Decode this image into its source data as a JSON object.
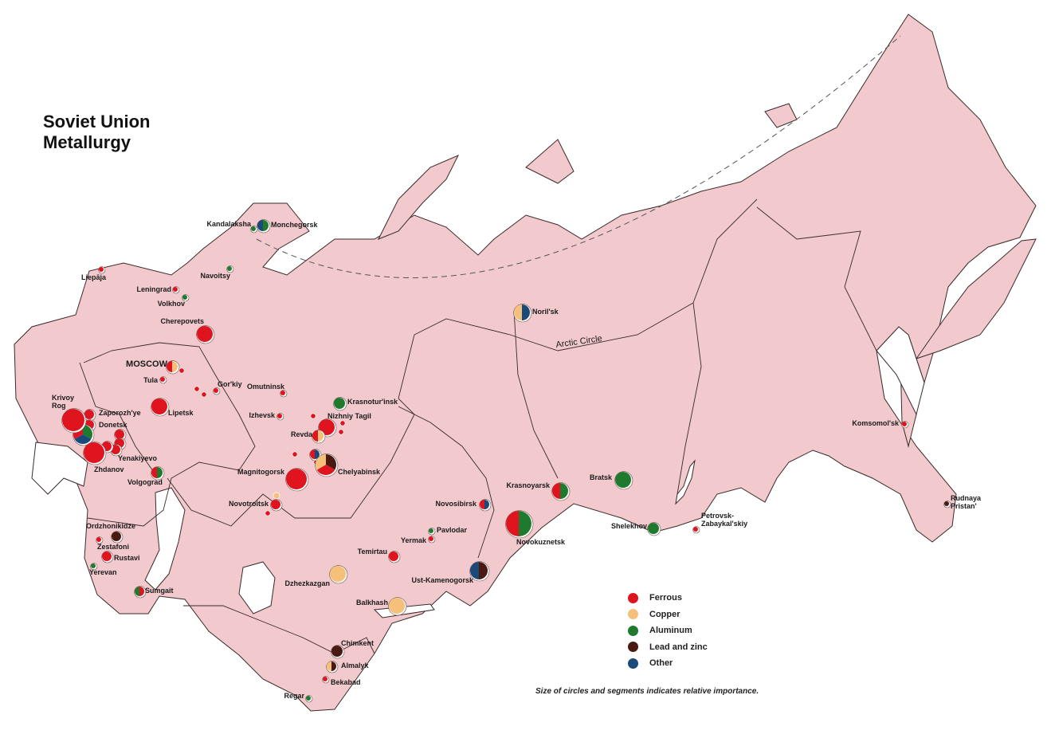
{
  "title": {
    "line1": "Soviet Union",
    "line2": "Metallurgy"
  },
  "arctic_circle_label": "Arctic Circle",
  "colors": {
    "land": "#f2c9cd",
    "border": "#3a2a2a",
    "water": "#ffffff",
    "ferrous": "#e0141e",
    "copper": "#f5c07a",
    "aluminum": "#1f7a2e",
    "lead_zinc": "#4a1a12",
    "other": "#1a4a7a"
  },
  "legend": {
    "items": [
      {
        "key": "ferrous",
        "label": "Ferrous"
      },
      {
        "key": "copper",
        "label": "Copper"
      },
      {
        "key": "aluminum",
        "label": "Aluminum"
      },
      {
        "key": "lead_zinc",
        "label": "Lead and zinc"
      },
      {
        "key": "other",
        "label": "Other"
      }
    ],
    "note": "Size of circles and segments indicates relative importance."
  },
  "cities": [
    {
      "name": "Monchegorsk",
      "metals": [
        "aluminum",
        "other"
      ]
    },
    {
      "name": "Kandalaksha",
      "metals": [
        "aluminum"
      ]
    },
    {
      "name": "Liepāja",
      "metals": [
        "ferrous"
      ]
    },
    {
      "name": "Leningrad",
      "metals": [
        "ferrous"
      ]
    },
    {
      "name": "Volkhov",
      "metals": [
        "aluminum"
      ]
    },
    {
      "name": "Navoitsy",
      "metals": [
        "aluminum"
      ]
    },
    {
      "name": "Cherepovets",
      "metals": [
        "ferrous"
      ]
    },
    {
      "name": "MOSCOW",
      "metals": [
        "copper",
        "ferrous"
      ]
    },
    {
      "name": "Tula",
      "metals": [
        "ferrous"
      ]
    },
    {
      "name": "Gor'kiy",
      "metals": [
        "ferrous"
      ]
    },
    {
      "name": "Omutninsk",
      "metals": [
        "ferrous"
      ]
    },
    {
      "name": "Lipetsk",
      "metals": [
        "ferrous"
      ]
    },
    {
      "name": "Izhevsk",
      "metals": [
        "ferrous"
      ]
    },
    {
      "name": "Krasnotur'insk",
      "metals": [
        "aluminum"
      ]
    },
    {
      "name": "Nizhniy Tagil",
      "metals": [
        "ferrous"
      ]
    },
    {
      "name": "Revda",
      "metals": [
        "copper",
        "ferrous"
      ]
    },
    {
      "name": "Krivoy\nRog",
      "metals": [
        "ferrous"
      ]
    },
    {
      "name": "Zaporozh'ye",
      "metals": [
        "ferrous"
      ]
    },
    {
      "name": "Donetsk",
      "metals": [
        "ferrous"
      ]
    },
    {
      "name": "Zhdanov",
      "metals": [
        "ferrous"
      ]
    },
    {
      "name": "Yenakiyevo",
      "metals": [
        "ferrous"
      ]
    },
    {
      "name": "Volgograd",
      "metals": [
        "aluminum",
        "ferrous"
      ]
    },
    {
      "name": "Chelyabinsk",
      "metals": [
        "lead_zinc",
        "ferrous",
        "copper"
      ]
    },
    {
      "name": "Magnitogorsk",
      "metals": [
        "ferrous"
      ]
    },
    {
      "name": "Novotroitsk",
      "metals": [
        "ferrous"
      ]
    },
    {
      "name": "Ordzhonikidze",
      "metals": [
        "lead_zinc"
      ]
    },
    {
      "name": "Zestafoni",
      "metals": [
        "ferrous"
      ]
    },
    {
      "name": "Rustavi",
      "metals": [
        "ferrous"
      ]
    },
    {
      "name": "Yerevan",
      "metals": [
        "aluminum"
      ]
    },
    {
      "name": "Sumgait",
      "metals": [
        "ferrous",
        "aluminum"
      ]
    },
    {
      "name": "Noril'sk",
      "metals": [
        "other",
        "copper"
      ]
    },
    {
      "name": "Krasnoyarsk",
      "metals": [
        "aluminum",
        "ferrous"
      ]
    },
    {
      "name": "Bratsk",
      "metals": [
        "aluminum"
      ]
    },
    {
      "name": "Shelekhov",
      "metals": [
        "aluminum"
      ]
    },
    {
      "name": "Novosibirsk",
      "metals": [
        "other",
        "ferrous"
      ]
    },
    {
      "name": "Novokuznetsk",
      "metals": [
        "aluminum",
        "ferrous"
      ]
    },
    {
      "name": "Pavlodar",
      "metals": [
        "aluminum"
      ]
    },
    {
      "name": "Yermak",
      "metals": [
        "ferrous"
      ]
    },
    {
      "name": "Temirtau",
      "metals": [
        "ferrous"
      ]
    },
    {
      "name": "Ust-Kamenogorsk",
      "metals": [
        "lead_zinc",
        "other"
      ]
    },
    {
      "name": "Dzhezkazgan",
      "metals": [
        "copper"
      ]
    },
    {
      "name": "Balkhash",
      "metals": [
        "copper"
      ]
    },
    {
      "name": "Chimkent",
      "metals": [
        "lead_zinc"
      ]
    },
    {
      "name": "Almalyk",
      "metals": [
        "lead_zinc",
        "copper"
      ]
    },
    {
      "name": "Bekabad",
      "metals": [
        "ferrous"
      ]
    },
    {
      "name": "Regar",
      "metals": [
        "aluminum"
      ]
    },
    {
      "name": "Petrovsk-\nZabaykal'skiy",
      "metals": [
        "ferrous"
      ]
    },
    {
      "name": "Komsomol'sk",
      "metals": [
        "ferrous"
      ]
    },
    {
      "name": "Rudnaya\nPristan'",
      "metals": [
        "lead_zinc"
      ]
    }
  ]
}
